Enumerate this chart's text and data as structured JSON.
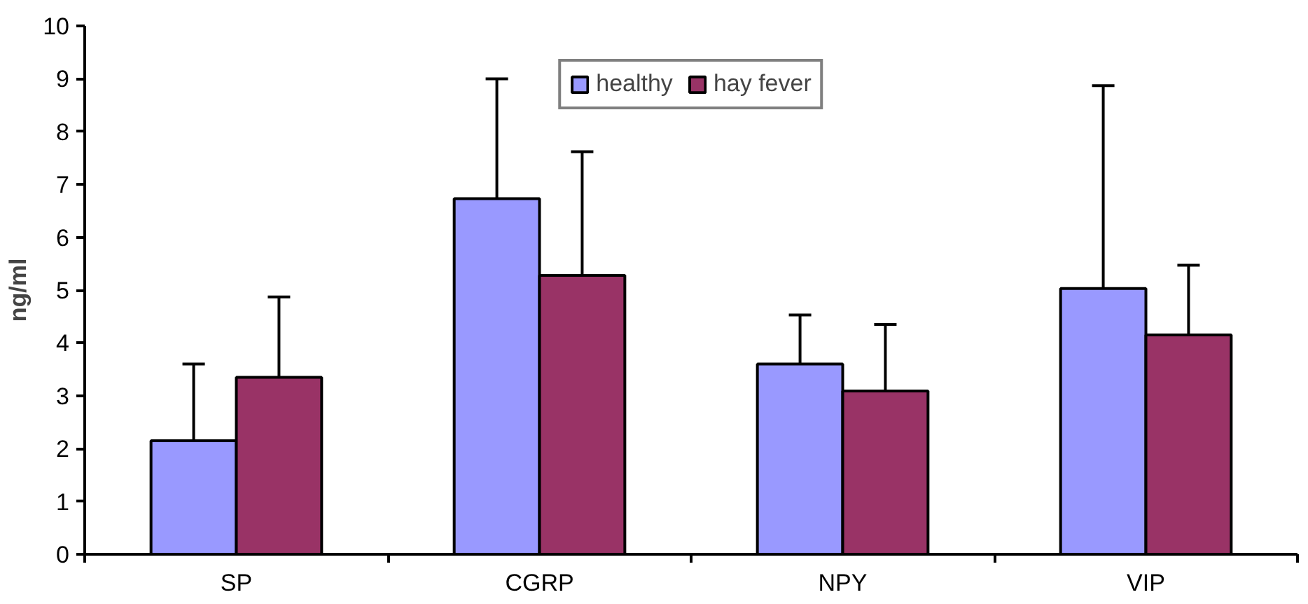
{
  "chart_data": {
    "type": "bar",
    "ylabel": "ng/ml",
    "categories": [
      "SP",
      "CGRP",
      "NPY",
      "VIP"
    ],
    "series": [
      {
        "name": "healthy",
        "color": "#9999ff",
        "values": [
          2.15,
          6.73,
          3.6,
          5.03
        ],
        "errors": [
          [
            2.15,
            3.6
          ],
          [
            6.73,
            9.0
          ],
          [
            3.6,
            4.53
          ],
          [
            5.03,
            8.87
          ]
        ]
      },
      {
        "name": "hay fever",
        "color": "#993366",
        "values": [
          3.35,
          5.28,
          3.09,
          4.15
        ],
        "errors": [
          [
            3.35,
            4.87
          ],
          [
            5.28,
            7.62
          ],
          [
            3.09,
            4.35
          ],
          [
            4.15,
            5.47
          ]
        ]
      }
    ],
    "ylim": [
      0,
      10
    ],
    "yticks": [
      0,
      1,
      2,
      3,
      4,
      5,
      6,
      7,
      8,
      9,
      10
    ],
    "grid": false,
    "legend": "top"
  }
}
